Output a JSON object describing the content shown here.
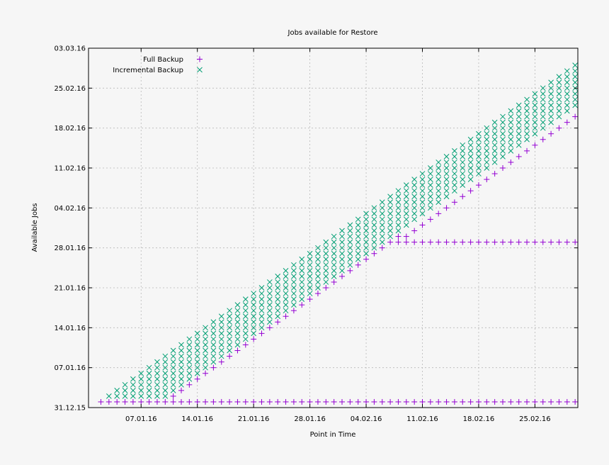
{
  "chart_data": {
    "type": "scatter",
    "title": "Jobs available for Restore",
    "xlabel": "Point in Time",
    "ylabel": "Available Jobs",
    "x_scale": "date",
    "xlim": [
      "2016-01-01",
      "2016-03-01"
    ],
    "ylim": [
      "2015-12-31",
      "2016-03-03"
    ],
    "x_ticks": [
      "07.01.16",
      "14.01.16",
      "21.01.16",
      "28.01.16",
      "04.02.16",
      "11.02.16",
      "18.02.16",
      "25.02.16"
    ],
    "y_ticks": [
      "31.12.15",
      "07.01.16",
      "14.01.16",
      "21.01.16",
      "28.01.16",
      "04.02.16",
      "11.02.16",
      "18.02.16",
      "25.02.16",
      "03.03.16"
    ],
    "grid": true,
    "legend_position": "top-left",
    "x_values": [
      "2016-01-02",
      "2016-01-03",
      "2016-01-04",
      "2016-01-05",
      "2016-01-06",
      "2016-01-07",
      "2016-01-08",
      "2016-01-09",
      "2016-01-10",
      "2016-01-11",
      "2016-01-12",
      "2016-01-13",
      "2016-01-14",
      "2016-01-15",
      "2016-01-16",
      "2016-01-17",
      "2016-01-18",
      "2016-01-19",
      "2016-01-20",
      "2016-01-21",
      "2016-01-22",
      "2016-01-23",
      "2016-01-24",
      "2016-01-25",
      "2016-01-26",
      "2016-01-27",
      "2016-01-28",
      "2016-01-29",
      "2016-01-30",
      "2016-01-31",
      "2016-02-01",
      "2016-02-02",
      "2016-02-03",
      "2016-02-04",
      "2016-02-05",
      "2016-02-06",
      "2016-02-07",
      "2016-02-08",
      "2016-02-09",
      "2016-02-10",
      "2016-02-11",
      "2016-02-12",
      "2016-02-13",
      "2016-02-14",
      "2016-02-15",
      "2016-02-16",
      "2016-02-17",
      "2016-02-18",
      "2016-02-19",
      "2016-02-20",
      "2016-02-21",
      "2016-02-22",
      "2016-02-23",
      "2016-02-24",
      "2016-02-25",
      "2016-02-26",
      "2016-02-27",
      "2016-02-28",
      "2016-02-29",
      "2016-03-01"
    ],
    "series": [
      {
        "name": "Full Backup",
        "color": "#9400d3",
        "marker": "plus",
        "description_of_rule": "",
        "points": [
          [
            "2016-01-02",
            "2016-01-01"
          ],
          [
            "2016-01-03",
            "2016-01-01"
          ],
          [
            "2016-01-04",
            "2016-01-01"
          ],
          [
            "2016-01-05",
            "2016-01-01"
          ],
          [
            "2016-01-06",
            "2016-01-01"
          ],
          [
            "2016-01-07",
            "2016-01-01"
          ],
          [
            "2016-01-08",
            "2016-01-01"
          ],
          [
            "2016-01-09",
            "2016-01-01"
          ],
          [
            "2016-01-10",
            "2016-01-01"
          ],
          [
            "2016-01-11",
            "2016-01-01"
          ],
          [
            "2016-01-12",
            "2016-01-01"
          ],
          [
            "2016-01-13",
            "2016-01-01"
          ],
          [
            "2016-01-14",
            "2016-01-01"
          ],
          [
            "2016-01-15",
            "2016-01-01"
          ],
          [
            "2016-01-16",
            "2016-01-01"
          ],
          [
            "2016-01-17",
            "2016-01-01"
          ],
          [
            "2016-01-18",
            "2016-01-01"
          ],
          [
            "2016-01-19",
            "2016-01-01"
          ],
          [
            "2016-01-20",
            "2016-01-01"
          ],
          [
            "2016-01-21",
            "2016-01-01"
          ],
          [
            "2016-01-22",
            "2016-01-01"
          ],
          [
            "2016-01-23",
            "2016-01-01"
          ],
          [
            "2016-01-24",
            "2016-01-01"
          ],
          [
            "2016-01-25",
            "2016-01-01"
          ],
          [
            "2016-01-26",
            "2016-01-01"
          ],
          [
            "2016-01-27",
            "2016-01-01"
          ],
          [
            "2016-01-28",
            "2016-01-01"
          ],
          [
            "2016-01-29",
            "2016-01-01"
          ],
          [
            "2016-01-30",
            "2016-01-01"
          ],
          [
            "2016-01-31",
            "2016-01-01"
          ],
          [
            "2016-02-01",
            "2016-01-01"
          ],
          [
            "2016-02-02",
            "2016-01-01"
          ],
          [
            "2016-02-03",
            "2016-01-01"
          ],
          [
            "2016-02-04",
            "2016-01-01"
          ],
          [
            "2016-02-05",
            "2016-01-01"
          ],
          [
            "2016-02-06",
            "2016-01-01"
          ],
          [
            "2016-02-07",
            "2016-01-01"
          ],
          [
            "2016-02-08",
            "2016-01-01"
          ],
          [
            "2016-02-09",
            "2016-01-01"
          ],
          [
            "2016-02-10",
            "2016-01-01"
          ],
          [
            "2016-02-11",
            "2016-01-01"
          ],
          [
            "2016-02-12",
            "2016-01-01"
          ],
          [
            "2016-02-13",
            "2016-01-01"
          ],
          [
            "2016-02-14",
            "2016-01-01"
          ],
          [
            "2016-02-15",
            "2016-01-01"
          ],
          [
            "2016-02-16",
            "2016-01-01"
          ],
          [
            "2016-02-17",
            "2016-01-01"
          ],
          [
            "2016-02-18",
            "2016-01-01"
          ],
          [
            "2016-02-19",
            "2016-01-01"
          ],
          [
            "2016-02-20",
            "2016-01-01"
          ],
          [
            "2016-02-21",
            "2016-01-01"
          ],
          [
            "2016-02-22",
            "2016-01-01"
          ],
          [
            "2016-02-23",
            "2016-01-01"
          ],
          [
            "2016-02-24",
            "2016-01-01"
          ],
          [
            "2016-02-25",
            "2016-01-01"
          ],
          [
            "2016-02-26",
            "2016-01-01"
          ],
          [
            "2016-02-27",
            "2016-01-01"
          ],
          [
            "2016-02-28",
            "2016-01-01"
          ],
          [
            "2016-02-29",
            "2016-01-01"
          ],
          [
            "2016-03-01",
            "2016-01-01"
          ],
          [
            "2016-01-11",
            "2016-01-02"
          ],
          [
            "2016-01-12",
            "2016-01-03"
          ],
          [
            "2016-01-13",
            "2016-01-04"
          ],
          [
            "2016-01-14",
            "2016-01-05"
          ],
          [
            "2016-01-15",
            "2016-01-06"
          ],
          [
            "2016-01-16",
            "2016-01-07"
          ],
          [
            "2016-01-17",
            "2016-01-08"
          ],
          [
            "2016-01-18",
            "2016-01-09"
          ],
          [
            "2016-01-19",
            "2016-01-10"
          ],
          [
            "2016-01-20",
            "2016-01-11"
          ],
          [
            "2016-01-21",
            "2016-01-12"
          ],
          [
            "2016-01-22",
            "2016-01-13"
          ],
          [
            "2016-01-23",
            "2016-01-14"
          ],
          [
            "2016-01-24",
            "2016-01-15"
          ],
          [
            "2016-01-25",
            "2016-01-16"
          ],
          [
            "2016-01-26",
            "2016-01-17"
          ],
          [
            "2016-01-27",
            "2016-01-18"
          ],
          [
            "2016-01-28",
            "2016-01-19"
          ],
          [
            "2016-01-29",
            "2016-01-20"
          ],
          [
            "2016-01-30",
            "2016-01-21"
          ],
          [
            "2016-01-31",
            "2016-01-22"
          ],
          [
            "2016-02-01",
            "2016-01-23"
          ],
          [
            "2016-02-02",
            "2016-01-24"
          ],
          [
            "2016-02-03",
            "2016-01-25"
          ],
          [
            "2016-02-04",
            "2016-01-26"
          ],
          [
            "2016-02-05",
            "2016-01-27"
          ],
          [
            "2016-02-06",
            "2016-01-28"
          ],
          [
            "2016-02-07",
            "2016-01-29"
          ],
          [
            "2016-02-08",
            "2016-01-30"
          ],
          [
            "2016-02-09",
            "2016-01-30"
          ],
          [
            "2016-02-10",
            "2016-01-31"
          ],
          [
            "2016-02-11",
            "2016-02-01"
          ],
          [
            "2016-02-12",
            "2016-02-02"
          ],
          [
            "2016-02-13",
            "2016-02-03"
          ],
          [
            "2016-02-14",
            "2016-02-04"
          ],
          [
            "2016-02-15",
            "2016-02-05"
          ],
          [
            "2016-02-16",
            "2016-02-06"
          ],
          [
            "2016-02-17",
            "2016-02-07"
          ],
          [
            "2016-02-18",
            "2016-02-08"
          ],
          [
            "2016-02-19",
            "2016-02-09"
          ],
          [
            "2016-02-20",
            "2016-02-10"
          ],
          [
            "2016-02-21",
            "2016-02-11"
          ],
          [
            "2016-02-22",
            "2016-02-12"
          ],
          [
            "2016-02-23",
            "2016-02-13"
          ],
          [
            "2016-02-24",
            "2016-02-14"
          ],
          [
            "2016-02-25",
            "2016-02-15"
          ],
          [
            "2016-02-26",
            "2016-02-16"
          ],
          [
            "2016-02-27",
            "2016-02-17"
          ],
          [
            "2016-02-28",
            "2016-02-18"
          ],
          [
            "2016-02-29",
            "2016-02-19"
          ],
          [
            "2016-03-01",
            "2016-02-20"
          ],
          [
            "2016-02-08",
            "2016-01-29"
          ],
          [
            "2016-02-09",
            "2016-01-29"
          ],
          [
            "2016-02-10",
            "2016-01-29"
          ],
          [
            "2016-02-11",
            "2016-01-29"
          ],
          [
            "2016-02-12",
            "2016-01-29"
          ],
          [
            "2016-02-13",
            "2016-01-29"
          ],
          [
            "2016-02-14",
            "2016-01-29"
          ],
          [
            "2016-02-15",
            "2016-01-29"
          ],
          [
            "2016-02-16",
            "2016-01-29"
          ],
          [
            "2016-02-17",
            "2016-01-29"
          ],
          [
            "2016-02-18",
            "2016-01-29"
          ],
          [
            "2016-02-19",
            "2016-01-29"
          ],
          [
            "2016-02-20",
            "2016-01-29"
          ],
          [
            "2016-02-21",
            "2016-01-29"
          ],
          [
            "2016-02-22",
            "2016-01-29"
          ],
          [
            "2016-02-23",
            "2016-01-29"
          ],
          [
            "2016-02-24",
            "2016-01-29"
          ],
          [
            "2016-02-25",
            "2016-01-29"
          ],
          [
            "2016-02-26",
            "2016-01-29"
          ],
          [
            "2016-02-27",
            "2016-01-29"
          ],
          [
            "2016-02-28",
            "2016-01-29"
          ],
          [
            "2016-02-29",
            "2016-01-29"
          ],
          [
            "2016-03-01",
            "2016-01-29"
          ]
        ]
      },
      {
        "name": "Incremental Backup",
        "color": "#009e73",
        "marker": "cross",
        "ranges": [
          {
            "x_from": "2016-01-03",
            "x_to": "2016-01-10",
            "y_from": "2016-01-02",
            "lag_days": 1
          },
          {
            "x_from": "2016-01-11",
            "x_to": "2016-03-01",
            "y_from_lag_days": 8,
            "y_to_lag_days": 1
          }
        ]
      }
    ]
  }
}
